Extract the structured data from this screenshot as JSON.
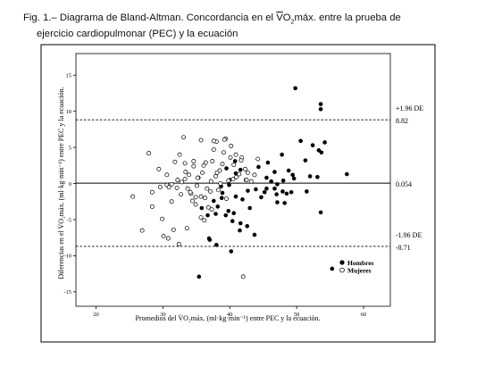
{
  "caption": {
    "line1_pre": "Fig. 1.– Diagrama de Bland-Altman. Concordancia en el ",
    "vo2_v": "V",
    "vo2_o": "O",
    "vo2_sub": "2",
    "line1_post": "máx. entre la prueba de",
    "line2": "ejercicio cardiopulmonar (PEC) y la ecuación"
  },
  "chart_data": {
    "type": "scatter",
    "xlabel": "Promedios del V̇O₂máx. (ml·kg·min⁻¹) entre PEC y la ecuación.",
    "ylabel": "Diferencias en el V̇O₂máx. (ml·kg·min⁻¹) entre PEC y la ecuación.",
    "xlim": [
      17,
      64
    ],
    "ylim": [
      -17,
      18
    ],
    "xticks": [
      20,
      30,
      40,
      50,
      60
    ],
    "yticks": [
      -15,
      -10,
      -5,
      0,
      5,
      10,
      15
    ],
    "grid": false,
    "legend_position": "bottom-right",
    "reference_lines": [
      {
        "value": 8.82,
        "style": "dashed",
        "label_top": "+1.96 DE",
        "label_bottom": "8.82"
      },
      {
        "value": 0.054,
        "style": "solid",
        "label_top": "",
        "label_bottom": "0.054"
      },
      {
        "value": -8.71,
        "style": "dashed",
        "label_top": "-1.96 DE",
        "label_bottom": "-8.71"
      }
    ],
    "series": [
      {
        "name": "Hombres",
        "marker": "filled",
        "x": [
          49.8,
          53.6,
          53.6,
          50.6,
          54.2,
          52.4,
          53.3,
          57.5,
          53.7,
          51.3,
          47.8,
          45.7,
          46.7,
          48.8,
          49.4,
          52.0,
          53.1,
          49.6,
          46.2,
          48.0,
          47.1,
          45.5,
          46.7,
          47.9,
          49.2,
          48.5,
          47.0,
          45.2,
          44.7,
          43.9,
          42.7,
          42.4,
          41.9,
          43.0,
          41.6,
          40.9,
          39.5,
          40.0,
          39.9,
          38.9,
          40.9,
          38.8,
          37.6,
          38.2,
          39.8,
          40.6,
          39.4,
          40.4,
          41.6,
          42.6,
          41.5,
          43.7,
          40.2,
          38.0,
          37.0,
          36.9,
          35.4,
          35.8,
          36.7,
          37.9,
          38.7,
          40.8,
          44.3,
          45.5,
          47.1,
          48.2,
          51.5,
          53.6,
          55.3
        ],
        "y": [
          13.2,
          11.0,
          10.3,
          5.9,
          5.7,
          5.3,
          4.6,
          1.3,
          4.3,
          3.2,
          4.0,
          2.9,
          1.6,
          1.8,
          1.2,
          1.0,
          0.9,
          0.7,
          0.3,
          0.4,
          -0.1,
          -0.7,
          -0.7,
          -1.1,
          -1.2,
          -1.4,
          -1.5,
          -1.2,
          -1.9,
          -0.8,
          -1.0,
          0.5,
          -2.2,
          -3.4,
          1.9,
          1.4,
          2.1,
          0.5,
          -0.2,
          -1.3,
          -1.8,
          -2.0,
          -2.4,
          -3.2,
          -3.8,
          -4.1,
          -4.4,
          -5.2,
          -5.5,
          -5.9,
          -6.5,
          -7.1,
          -9.4,
          -8.5,
          -7.8,
          -7.6,
          -12.9,
          -3.4,
          -4.4,
          -4.2,
          -0.4,
          3.1,
          2.3,
          0.8,
          -2.6,
          -2.7,
          -1.1,
          -4.0,
          -11.8
        ]
      },
      {
        "name": "Mujeres",
        "marker": "open",
        "x": [
          25.5,
          27.9,
          28.4,
          29.4,
          29.9,
          30.6,
          30.8,
          31.3,
          32.5,
          31.3,
          33.3,
          33.3,
          33.7,
          34.2,
          34.6,
          34.9,
          35.3,
          35.7,
          35.9,
          36.4,
          36.8,
          37.2,
          37.6,
          37.9,
          38.3,
          38.5,
          38.9,
          39.1,
          39.5,
          39.8,
          40.1,
          40.6,
          41.0,
          41.4,
          41.8,
          42.3,
          42.7,
          43.2,
          43.7,
          44.2,
          32.2,
          32.7,
          33.9,
          34.6,
          35.2,
          36.1,
          36.6,
          37.4,
          38.0,
          38.6,
          39.4,
          40.2,
          40.9,
          41.7,
          42.5,
          29.6,
          30.6,
          31.8,
          32.8,
          33.6,
          34.4,
          35.7,
          36.3,
          37.1,
          38.1,
          39.2,
          40.5,
          30.1,
          31.6,
          33.1,
          34.1,
          35.1,
          36.2,
          37.3,
          32.1,
          33.4,
          34.9,
          28.4,
          30.9,
          32.4,
          35.7,
          37.6,
          42.0,
          26.9
        ],
        "y": [
          -1.8,
          4.2,
          -3.2,
          2.0,
          -4.9,
          1.2,
          -7.6,
          -0.1,
          4.0,
          -2.5,
          2.8,
          0.6,
          -0.7,
          -1.4,
          2.4,
          -2.9,
          0.8,
          -1.8,
          1.5,
          2.9,
          -3.3,
          0.3,
          4.7,
          1.0,
          -0.9,
          1.8,
          2.7,
          4.3,
          -2.1,
          0.4,
          3.6,
          2.6,
          0.9,
          1.3,
          3.6,
          2.0,
          1.5,
          0.3,
          1.2,
          3.4,
          0.5,
          -1.5,
          1.2,
          3.1,
          0.8,
          2.5,
          -0.7,
          3.1,
          5.8,
          0.0,
          6.2,
          5.2,
          4.0,
          3.2,
          0.5,
          -0.5,
          -0.2,
          3.0,
          0.2,
          -6.2,
          -2.4,
          -4.7,
          -2.0,
          -1.1,
          1.5,
          6.1,
          0.6,
          -7.3,
          -6.4,
          6.4,
          -1.2,
          -0.3,
          -5.1,
          -3.6,
          -0.6,
          1.6,
          -1.9,
          -1.2,
          -0.5,
          -8.4,
          6.0,
          5.9,
          -12.9,
          -6.5
        ]
      }
    ]
  }
}
